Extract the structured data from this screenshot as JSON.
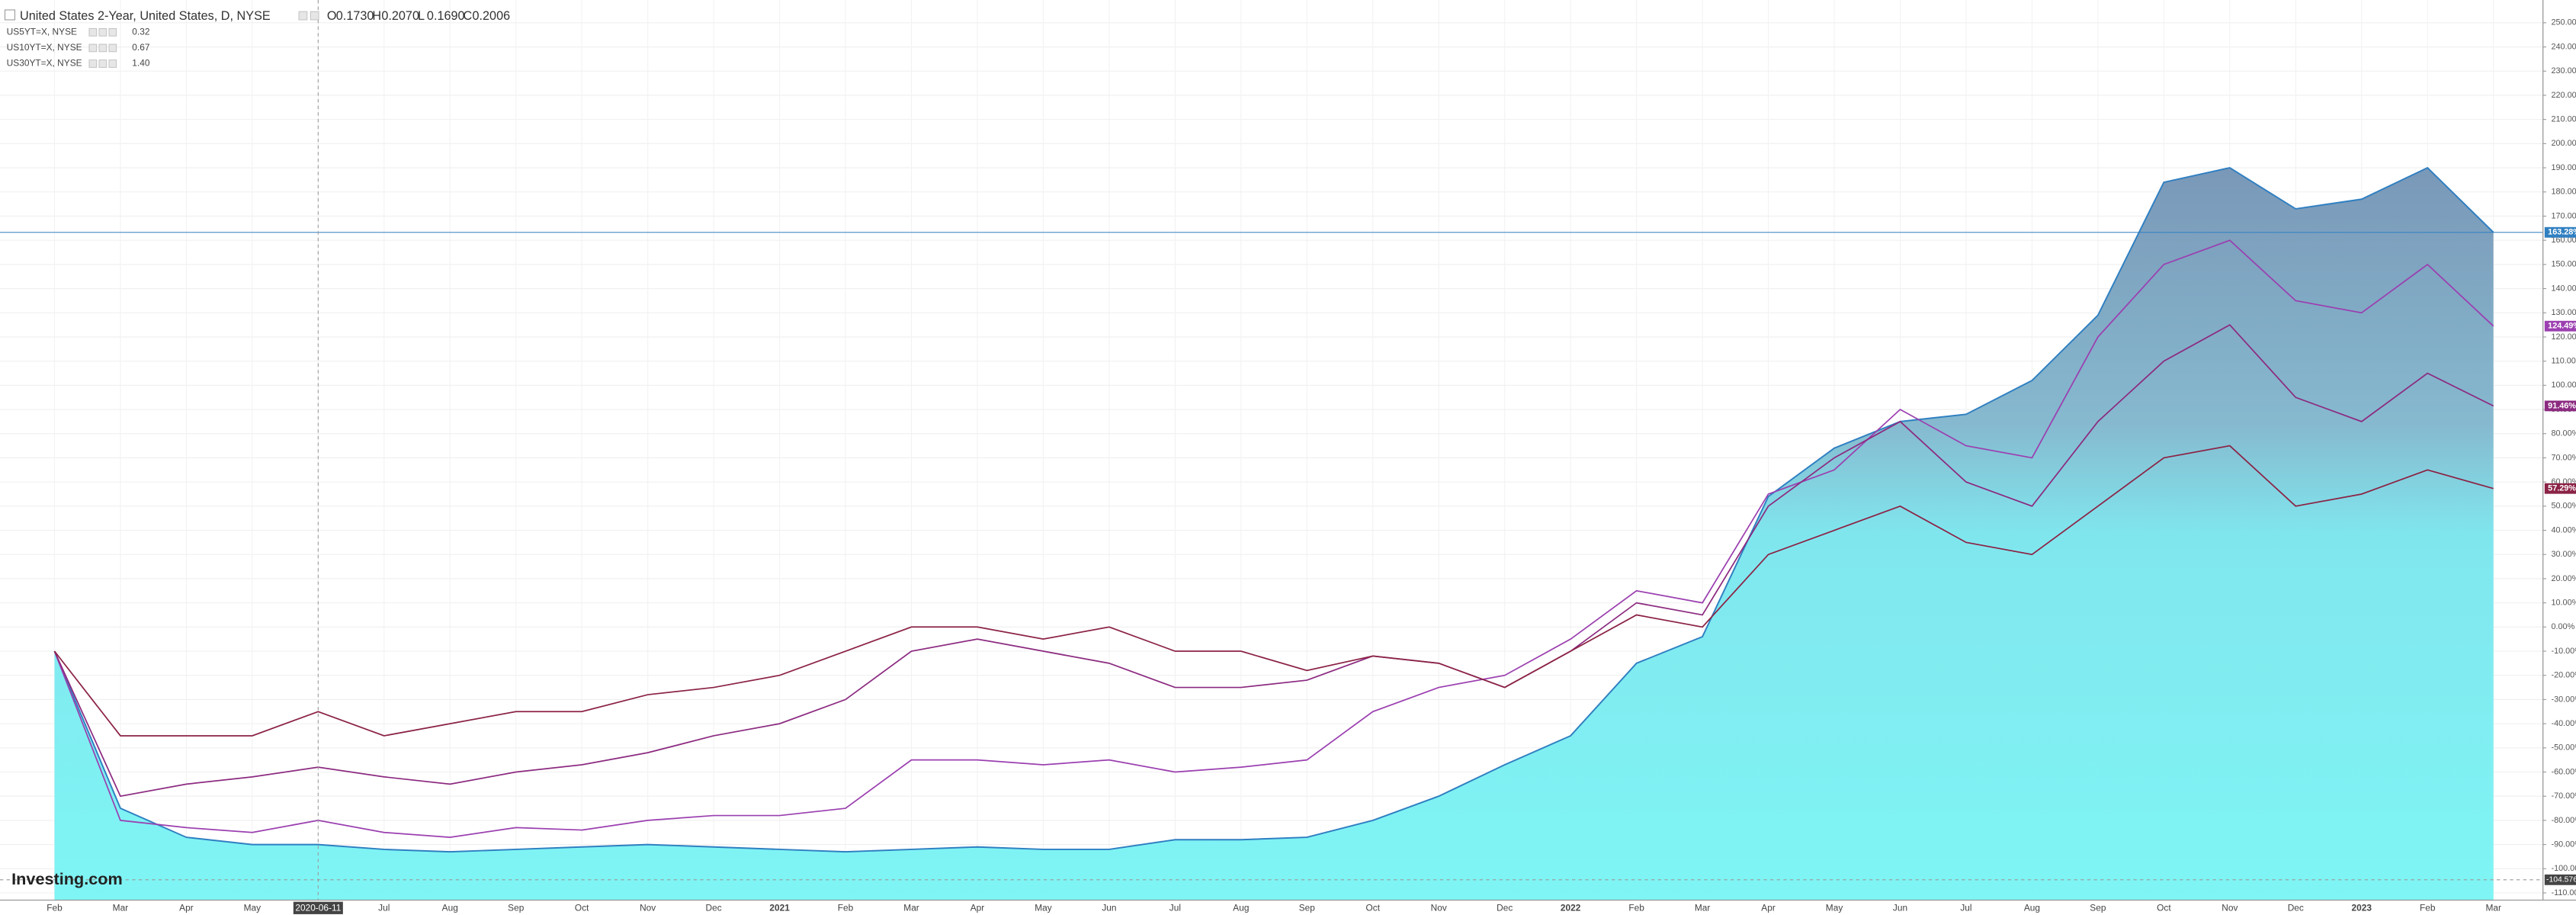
{
  "chart_data": {
    "type": "line",
    "categories": [
      "Feb",
      "Mar",
      "Apr",
      "May",
      null,
      "Jul",
      "Aug",
      "Sep",
      "Oct",
      "Nov",
      "Dec",
      "2021",
      "Feb",
      "Mar",
      "Apr",
      "May",
      "Jun",
      "Jul",
      "Aug",
      "Sep",
      "Oct",
      "Nov",
      "Dec",
      "2022",
      "Feb",
      "Mar",
      "Apr",
      "May",
      "Jun",
      "Jul",
      "Aug",
      "Sep",
      "Oct",
      "Nov",
      "Dec",
      "2023",
      "Feb",
      "Mar"
    ],
    "series": [
      {
        "name": "United States 2-Year, United States, D, NYSE",
        "style": "area",
        "color": "#2f7fc1",
        "end_label": "163.28%",
        "values": [
          -10,
          -75,
          -87,
          -90,
          -90,
          -92,
          -93,
          -92,
          -91,
          -90,
          -91,
          -92,
          -93,
          -92,
          -91,
          -92,
          -92,
          -88,
          -88,
          -87,
          -80,
          -70,
          -57,
          -45,
          -15,
          -4,
          54,
          74,
          85,
          88,
          102,
          129,
          184,
          190,
          173,
          177,
          190,
          163.28
        ]
      },
      {
        "name": "US5YT=X, NYSE",
        "legend_value": "0.32",
        "color": "#9b3fb0",
        "end_label": "124.49%",
        "values": [
          -10,
          -80,
          -83,
          -85,
          -80,
          -85,
          -87,
          -83,
          -84,
          -80,
          -78,
          -78,
          -75,
          -55,
          -55,
          -57,
          -55,
          -60,
          -58,
          -55,
          -35,
          -25,
          -20,
          -5,
          15,
          10,
          55,
          65,
          90,
          75,
          70,
          120,
          150,
          160,
          135,
          130,
          150,
          124.49
        ]
      },
      {
        "name": "US10YT=X, NYSE",
        "legend_value": "0.67",
        "color": "#8c2a80",
        "end_label": "91.46%",
        "values": [
          -10,
          -70,
          -65,
          -62,
          -58,
          -62,
          -65,
          -60,
          -57,
          -52,
          -45,
          -40,
          -30,
          -10,
          -5,
          -10,
          -15,
          -25,
          -25,
          -22,
          -12,
          -15,
          -25,
          -10,
          10,
          5,
          50,
          70,
          85,
          60,
          50,
          85,
          110,
          125,
          95,
          85,
          105,
          91.46
        ]
      },
      {
        "name": "US30YT=X, NYSE",
        "legend_value": "1.40",
        "color": "#8b2345",
        "end_label": "57.29%",
        "values": [
          -10,
          -45,
          -45,
          -45,
          -35,
          -45,
          -40,
          -35,
          -35,
          -28,
          -25,
          -20,
          -10,
          0,
          0,
          -5,
          0,
          -10,
          -10,
          -18,
          -12,
          -15,
          -25,
          -10,
          5,
          0,
          30,
          40,
          50,
          35,
          30,
          50,
          70,
          75,
          50,
          55,
          65,
          57.29
        ]
      }
    ],
    "ohlc": [
      {
        "label": "O",
        "value": "0.1730"
      },
      {
        "label": "H",
        "value": "0.2070"
      },
      {
        "label": "L",
        "value": "0.1690"
      },
      {
        "label": "C",
        "value": "0.2006"
      }
    ],
    "crosshair": {
      "x_label": "2020-06-11",
      "y": {
        "value": -104.5763,
        "label": "-104.5763"
      }
    },
    "watermark": "Investing.com",
    "ylim": [
      -113,
      256
    ],
    "yticks": [
      {
        "value": -110,
        "label": "-110.00%"
      },
      {
        "value": -100,
        "label": "-100.00%"
      },
      {
        "value": -90,
        "label": "-90.00%"
      },
      {
        "value": -80,
        "label": "-80.00%"
      },
      {
        "value": -70,
        "label": "-70.00%"
      },
      {
        "value": -60,
        "label": "-60.00%"
      },
      {
        "value": -50,
        "label": "-50.00%"
      },
      {
        "value": -40,
        "label": "-40.00%"
      },
      {
        "value": -30,
        "label": "-30.00%"
      },
      {
        "value": -20,
        "label": "-20.00%"
      },
      {
        "value": -10,
        "label": "-10.00%"
      },
      {
        "value": 0,
        "label": "0.00%"
      },
      {
        "value": 10,
        "label": "10.00%"
      },
      {
        "value": 20,
        "label": "20.00%"
      },
      {
        "value": 30,
        "label": "30.00%"
      },
      {
        "value": 40,
        "label": "40.00%"
      },
      {
        "value": 50,
        "label": "50.00%"
      },
      {
        "value": 60,
        "label": "60.00%"
      },
      {
        "value": 70,
        "label": "70.00%"
      },
      {
        "value": 80,
        "label": "80.00%"
      },
      {
        "value": 90,
        "label": "90.00%"
      },
      {
        "value": 100,
        "label": "100.00%"
      },
      {
        "value": 110,
        "label": "110.00%"
      },
      {
        "value": 120,
        "label": "120.00%"
      },
      {
        "value": 130,
        "label": "130.00%"
      },
      {
        "value": 140,
        "label": "140.00%"
      },
      {
        "value": 150,
        "label": "150.00%"
      },
      {
        "value": 160,
        "label": "160.00%"
      },
      {
        "value": 170,
        "label": "170.00%"
      },
      {
        "value": 180,
        "label": "180.00%"
      },
      {
        "value": 190,
        "label": "190.00%"
      },
      {
        "value": 200,
        "label": "200.00%"
      },
      {
        "value": 210,
        "label": "210.00%"
      },
      {
        "value": 220,
        "label": "220.00%"
      },
      {
        "value": 230,
        "label": "230.00%"
      },
      {
        "value": 240,
        "label": "240.00%"
      },
      {
        "value": 250,
        "label": "250.00%"
      }
    ],
    "grid": true
  }
}
